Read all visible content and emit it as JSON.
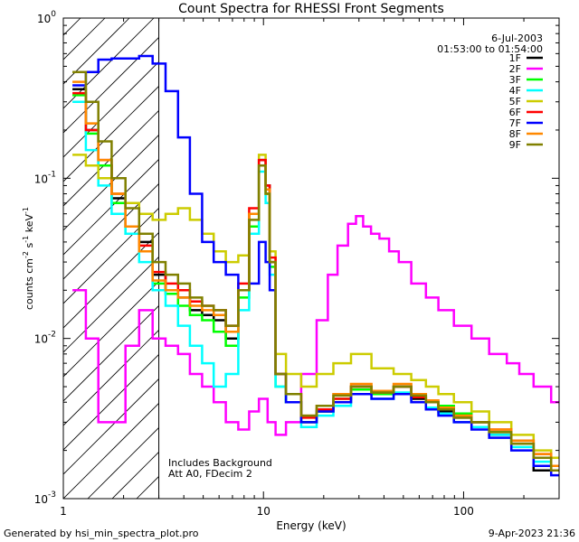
{
  "chart_data": {
    "type": "line",
    "title": "Count Spectra for RHESSI Front Segments",
    "xlabel": "Energy (keV)",
    "ylabel_main": "counts cm",
    "ylabel_sup1": "-2",
    "ylabel_mid": " s",
    "ylabel_sup2": "-1",
    "ylabel_unit": " keV",
    "ylabel_sup3": "-1",
    "x_scale": "log",
    "y_scale": "log",
    "xlim": [
      1,
      300
    ],
    "ylim": [
      0.001,
      1
    ],
    "x_ticks": [
      {
        "v": 1,
        "label": "1"
      },
      {
        "v": 10,
        "label": "10"
      },
      {
        "v": 100,
        "label": "100"
      }
    ],
    "y_ticks": [
      {
        "v": 1,
        "base": "10",
        "exp": "0"
      },
      {
        "v": 0.1,
        "base": "10",
        "exp": "-1"
      },
      {
        "v": 0.01,
        "base": "10",
        "exp": "-2"
      },
      {
        "v": 0.001,
        "base": "10",
        "exp": "-3"
      }
    ],
    "date": "6-Jul-2003",
    "time_range": "01:53:00 to 01:54:00",
    "hatched_below_keV": 3,
    "annotation_line1": "Includes Background",
    "annotation_line2": "Att A0, FDecim 2",
    "footer_left": "Generated by hsi_min_spectra_plot.pro",
    "footer_right": "9-Apr-2023 21:36",
    "legend_placement": "top-right",
    "series": [
      {
        "name": "1F",
        "color": "#000000",
        "x": [
          1.2,
          1.4,
          1.6,
          1.9,
          2.2,
          2.6,
          3.0,
          3.5,
          4.0,
          4.6,
          5.3,
          6.0,
          7.0,
          8.0,
          9.0,
          10.0,
          10.5,
          11.0,
          12.0,
          14,
          17,
          20,
          25,
          30,
          40,
          50,
          60,
          70,
          80,
          100,
          120,
          150,
          200,
          250,
          300
        ],
        "y": [
          0.36,
          0.2,
          0.12,
          0.075,
          0.05,
          0.04,
          0.025,
          0.02,
          0.018,
          0.015,
          0.014,
          0.013,
          0.01,
          0.02,
          0.06,
          0.13,
          0.09,
          0.03,
          0.006,
          0.004,
          0.003,
          0.0035,
          0.004,
          0.005,
          0.0045,
          0.005,
          0.0042,
          0.004,
          0.0035,
          0.0032,
          0.003,
          0.0025,
          0.0022,
          0.0015,
          0.0015
        ]
      },
      {
        "name": "2F",
        "color": "#ff00ff",
        "x": [
          1.2,
          1.4,
          1.6,
          1.9,
          2.2,
          2.6,
          3.0,
          3.5,
          4.0,
          4.6,
          5.3,
          6.0,
          7.0,
          8.0,
          9.0,
          10.0,
          11.0,
          12.0,
          14,
          17,
          20,
          22,
          25,
          28,
          30,
          33,
          36,
          40,
          45,
          50,
          60,
          70,
          80,
          100,
          120,
          150,
          180,
          200,
          250,
          300
        ],
        "y": [
          0.02,
          0.01,
          0.003,
          0.003,
          0.009,
          0.015,
          0.01,
          0.009,
          0.008,
          0.006,
          0.005,
          0.004,
          0.003,
          0.0027,
          0.0035,
          0.0042,
          0.003,
          0.0025,
          0.003,
          0.006,
          0.013,
          0.025,
          0.038,
          0.052,
          0.058,
          0.05,
          0.045,
          0.042,
          0.035,
          0.03,
          0.022,
          0.018,
          0.015,
          0.012,
          0.01,
          0.008,
          0.007,
          0.006,
          0.005,
          0.004
        ]
      },
      {
        "name": "3F",
        "color": "#00ff00",
        "x": [
          1.2,
          1.4,
          1.6,
          1.9,
          2.2,
          2.6,
          3.0,
          3.5,
          4.0,
          4.6,
          5.3,
          6.0,
          7.0,
          8.0,
          9.0,
          10.0,
          10.5,
          11.0,
          12.0,
          14,
          17,
          20,
          25,
          30,
          40,
          50,
          60,
          70,
          80,
          100,
          120,
          150,
          200,
          250,
          300
        ],
        "y": [
          0.33,
          0.19,
          0.12,
          0.07,
          0.045,
          0.035,
          0.022,
          0.019,
          0.016,
          0.014,
          0.013,
          0.011,
          0.009,
          0.018,
          0.05,
          0.12,
          0.08,
          0.028,
          0.005,
          0.004,
          0.003,
          0.0035,
          0.0042,
          0.0048,
          0.0045,
          0.005,
          0.0044,
          0.004,
          0.0038,
          0.0034,
          0.003,
          0.0026,
          0.0023,
          0.0018,
          0.0016
        ]
      },
      {
        "name": "4F",
        "color": "#00ffff",
        "x": [
          1.2,
          1.4,
          1.6,
          1.9,
          2.2,
          2.6,
          3.0,
          3.5,
          4.0,
          4.6,
          5.3,
          6.0,
          7.0,
          8.0,
          9.0,
          10.0,
          10.5,
          11.0,
          12.0,
          14,
          17,
          20,
          25,
          30,
          40,
          50,
          60,
          70,
          80,
          100,
          120,
          150,
          200,
          250,
          300
        ],
        "y": [
          0.3,
          0.15,
          0.09,
          0.06,
          0.045,
          0.03,
          0.02,
          0.016,
          0.012,
          0.009,
          0.007,
          0.005,
          0.006,
          0.015,
          0.045,
          0.11,
          0.07,
          0.025,
          0.005,
          0.004,
          0.0028,
          0.0033,
          0.0038,
          0.0045,
          0.0042,
          0.0046,
          0.004,
          0.0037,
          0.0034,
          0.003,
          0.0028,
          0.0025,
          0.0021,
          0.0017,
          0.0015
        ]
      },
      {
        "name": "5F",
        "color": "#cccc00",
        "x": [
          1.2,
          1.4,
          1.6,
          1.9,
          2.2,
          2.6,
          3.0,
          3.5,
          4.0,
          4.6,
          5.3,
          6.0,
          7.0,
          8.0,
          9.0,
          10.0,
          10.5,
          11.0,
          12.0,
          14,
          17,
          20,
          25,
          30,
          40,
          50,
          60,
          70,
          80,
          100,
          120,
          150,
          200,
          250,
          300
        ],
        "y": [
          0.14,
          0.12,
          0.1,
          0.08,
          0.07,
          0.06,
          0.055,
          0.06,
          0.065,
          0.055,
          0.045,
          0.035,
          0.03,
          0.033,
          0.06,
          0.14,
          0.08,
          0.035,
          0.008,
          0.006,
          0.005,
          0.006,
          0.007,
          0.008,
          0.0065,
          0.006,
          0.0055,
          0.005,
          0.0045,
          0.004,
          0.0035,
          0.003,
          0.0025,
          0.002,
          0.0018
        ]
      },
      {
        "name": "6F",
        "color": "#ff0000",
        "x": [
          1.2,
          1.4,
          1.6,
          1.9,
          2.2,
          2.6,
          3.0,
          3.5,
          4.0,
          4.6,
          5.3,
          6.0,
          7.0,
          8.0,
          9.0,
          10.0,
          10.5,
          11.0,
          12.0,
          14,
          17,
          20,
          25,
          30,
          40,
          50,
          60,
          70,
          80,
          100,
          120,
          150,
          200,
          250,
          300
        ],
        "y": [
          0.34,
          0.2,
          0.13,
          0.08,
          0.05,
          0.038,
          0.026,
          0.022,
          0.02,
          0.017,
          0.016,
          0.015,
          0.012,
          0.022,
          0.065,
          0.13,
          0.09,
          0.032,
          0.006,
          0.0045,
          0.0032,
          0.0036,
          0.0042,
          0.005,
          0.0046,
          0.005,
          0.0043,
          0.004,
          0.0037,
          0.0033,
          0.003,
          0.0027,
          0.0023,
          0.0019,
          0.0016
        ]
      },
      {
        "name": "7F",
        "color": "#0000ff",
        "x": [
          1.2,
          1.4,
          1.6,
          1.9,
          2.2,
          2.6,
          3.0,
          3.5,
          4.0,
          4.6,
          5.3,
          6.0,
          7.0,
          8.0,
          9.0,
          10.0,
          10.5,
          11.0,
          12.0,
          14,
          17,
          20,
          25,
          30,
          40,
          50,
          60,
          70,
          80,
          100,
          120,
          150,
          200,
          250,
          300
        ],
        "y": [
          0.38,
          0.46,
          0.55,
          0.56,
          0.56,
          0.58,
          0.52,
          0.35,
          0.18,
          0.08,
          0.04,
          0.03,
          0.025,
          0.02,
          0.022,
          0.04,
          0.03,
          0.02,
          0.006,
          0.004,
          0.003,
          0.0035,
          0.004,
          0.0045,
          0.0042,
          0.0045,
          0.004,
          0.0036,
          0.0033,
          0.003,
          0.0027,
          0.0024,
          0.002,
          0.0016,
          0.0014
        ]
      },
      {
        "name": "8F",
        "color": "#ff8800",
        "x": [
          1.2,
          1.4,
          1.6,
          1.9,
          2.2,
          2.6,
          3.0,
          3.5,
          4.0,
          4.6,
          5.3,
          6.0,
          7.0,
          8.0,
          9.0,
          10.0,
          10.5,
          11.0,
          12.0,
          14,
          17,
          20,
          25,
          30,
          40,
          50,
          60,
          70,
          80,
          100,
          120,
          150,
          200,
          250,
          300
        ],
        "y": [
          0.4,
          0.22,
          0.13,
          0.08,
          0.05,
          0.035,
          0.023,
          0.02,
          0.018,
          0.016,
          0.015,
          0.014,
          0.011,
          0.02,
          0.06,
          0.12,
          0.085,
          0.03,
          0.006,
          0.0045,
          0.0033,
          0.0038,
          0.0045,
          0.0052,
          0.0047,
          0.0052,
          0.0045,
          0.0041,
          0.0037,
          0.0033,
          0.003,
          0.0027,
          0.0023,
          0.0019,
          0.0016
        ]
      },
      {
        "name": "9F",
        "color": "#808000",
        "x": [
          1.2,
          1.4,
          1.6,
          1.9,
          2.2,
          2.6,
          3.0,
          3.5,
          4.0,
          4.6,
          5.3,
          6.0,
          7.0,
          8.0,
          9.0,
          10.0,
          10.5,
          11.0,
          12.0,
          14,
          17,
          20,
          25,
          30,
          40,
          50,
          60,
          70,
          80,
          100,
          120,
          150,
          200,
          250,
          300
        ],
        "y": [
          0.46,
          0.3,
          0.17,
          0.1,
          0.065,
          0.045,
          0.03,
          0.025,
          0.022,
          0.018,
          0.016,
          0.015,
          0.012,
          0.02,
          0.055,
          0.12,
          0.08,
          0.03,
          0.006,
          0.0045,
          0.0033,
          0.0038,
          0.0044,
          0.005,
          0.0046,
          0.005,
          0.0044,
          0.004,
          0.0036,
          0.0032,
          0.003,
          0.0026,
          0.0022,
          0.0018,
          0.0015
        ]
      }
    ]
  }
}
